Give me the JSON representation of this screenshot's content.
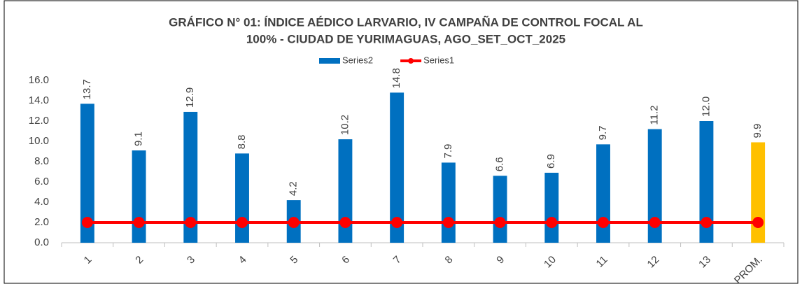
{
  "chart_data": {
    "type": "bar",
    "title": [
      "GRÁFICO N° 01: ÍNDICE AÉDICO LARVARIO, IV CAMPAÑA DE CONTROL FOCAL AL",
      "100%  - CIUDAD DE YURIMAGUAS, AGO_SET_OCT_2025"
    ],
    "categories": [
      "1",
      "2",
      "3",
      "4",
      "5",
      "6",
      "7",
      "8",
      "9",
      "10",
      "11",
      "12",
      "13",
      "PROM."
    ],
    "series": [
      {
        "name": "Series2",
        "type": "bar",
        "color": "#0070C0",
        "colors": [
          "#0070C0",
          "#0070C0",
          "#0070C0",
          "#0070C0",
          "#0070C0",
          "#0070C0",
          "#0070C0",
          "#0070C0",
          "#0070C0",
          "#0070C0",
          "#0070C0",
          "#0070C0",
          "#0070C0",
          "#FFC000"
        ],
        "values": [
          13.7,
          9.1,
          12.9,
          8.8,
          4.2,
          10.2,
          14.8,
          7.9,
          6.6,
          6.9,
          9.7,
          11.2,
          12.0,
          9.9
        ],
        "value_labels": [
          "13.7",
          "9.1",
          "12.9",
          "8.8",
          "4.2",
          "10.2",
          "14.8",
          "7.9",
          "6.6",
          "6.9",
          "9.7",
          "11.2",
          "12.0",
          "9.9"
        ]
      },
      {
        "name": "Series1",
        "type": "line",
        "color": "#FF0000",
        "values": [
          2,
          2,
          2,
          2,
          2,
          2,
          2,
          2,
          2,
          2,
          2,
          2,
          2,
          2
        ]
      }
    ],
    "ylim": [
      0,
      16
    ],
    "yticks": [
      {
        "value": 0,
        "label": "0.0"
      },
      {
        "value": 2,
        "label": "2.0"
      },
      {
        "value": 4,
        "label": "4.0"
      },
      {
        "value": 6,
        "label": "6.0"
      },
      {
        "value": 8,
        "label": "8.0"
      },
      {
        "value": 10,
        "label": "10.0"
      },
      {
        "value": 12,
        "label": "12.0"
      },
      {
        "value": 14,
        "label": "14.0"
      },
      {
        "value": 16,
        "label": "16.0"
      }
    ],
    "grid": false
  }
}
